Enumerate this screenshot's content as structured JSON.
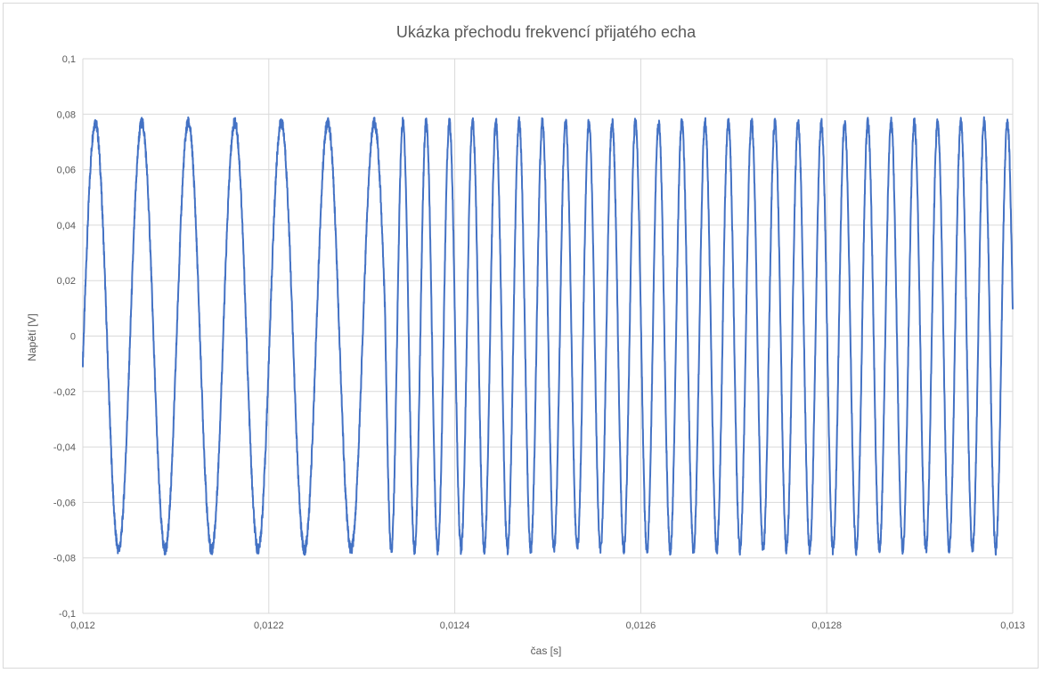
{
  "chart_data": {
    "type": "line",
    "title": "Ukázka přechodu frekvencí přijatého echa",
    "xlabel": "čas [s]",
    "ylabel": "Napětí [V]",
    "xlim": [
      0.012,
      0.013
    ],
    "ylim": [
      -0.1,
      0.1
    ],
    "x_ticks": [
      "0,012",
      "0,0122",
      "0,0124",
      "0,0126",
      "0,0128",
      "0,013"
    ],
    "y_ticks": [
      "0,1",
      "0,08",
      "0,06",
      "0,04",
      "0,02",
      "0",
      "-0,02",
      "-0,04",
      "-0,06",
      "-0,08",
      "-0,1"
    ],
    "grid": true,
    "legend": "none",
    "series_color": "#4472C4",
    "signal_segments": [
      {
        "x_start": 0.012,
        "x_end": 0.012325,
        "frequency_hz": 20000,
        "amplitude": 0.077
      },
      {
        "x_start": 0.012325,
        "x_end": 0.013,
        "frequency_hz": 40000,
        "amplitude": 0.077
      }
    ],
    "start_value": -0.009
  }
}
